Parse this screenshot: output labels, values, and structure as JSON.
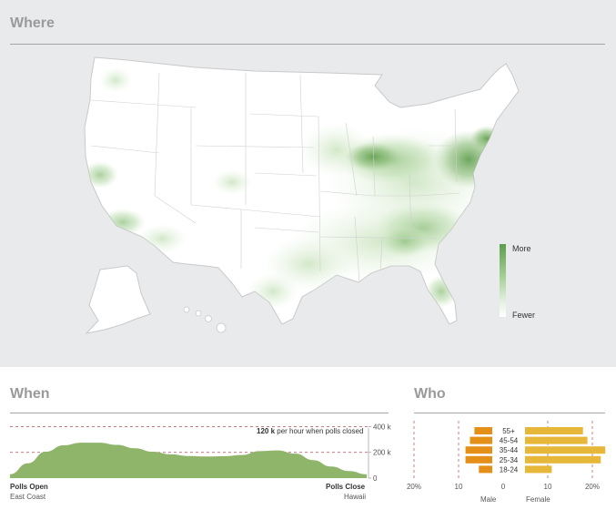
{
  "where": {
    "title": "Where",
    "legend": {
      "more": "More",
      "fewer": "Fewer"
    }
  },
  "when": {
    "title": "When",
    "annotation_value": "120 k",
    "annotation_text": "per hour when polls closed",
    "start_label": "Polls Open",
    "start_sublabel": "East Coast",
    "end_label": "Polls Close",
    "end_sublabel": "Hawaii"
  },
  "who": {
    "title": "Who",
    "male_label": "Male",
    "female_label": "Female"
  },
  "chart_data": [
    {
      "type": "heatmap",
      "title": "Where",
      "description_scale": [
        "Fewer",
        "More"
      ],
      "colors": {
        "high": "#5d9d4c",
        "low": "#ffffff"
      }
    },
    {
      "type": "area",
      "title": "When",
      "x": [
        0,
        0.05,
        0.1,
        0.15,
        0.2,
        0.25,
        0.3,
        0.35,
        0.4,
        0.45,
        0.5,
        0.55,
        0.6,
        0.65,
        0.7,
        0.75,
        0.8,
        0.85,
        0.9,
        0.95,
        1
      ],
      "values": [
        30,
        115,
        205,
        255,
        275,
        275,
        258,
        232,
        205,
        185,
        172,
        168,
        170,
        180,
        210,
        215,
        190,
        140,
        90,
        55,
        30
      ],
      "yticks": [
        0,
        200,
        400
      ],
      "yticklabels": [
        "0",
        "200 k",
        "400 k"
      ],
      "ylim": [
        0,
        460
      ],
      "dashed_lines": [
        200,
        400
      ],
      "color": "#8fb56b"
    },
    {
      "type": "bar",
      "title": "Who",
      "categories": [
        "55+",
        "45-54",
        "35-44",
        "25-34",
        "18-24"
      ],
      "series": [
        {
          "name": "Male",
          "values": [
            4,
            5,
            6,
            6,
            3
          ],
          "color": "#e38f18"
        },
        {
          "name": "Female",
          "values": [
            13,
            14,
            18,
            17,
            6
          ],
          "color": "#e6b739"
        }
      ],
      "xticks": [
        -20,
        -10,
        0,
        10,
        20
      ],
      "xticklabels": [
        "20%",
        "10",
        "0",
        "10",
        "20%"
      ]
    }
  ]
}
